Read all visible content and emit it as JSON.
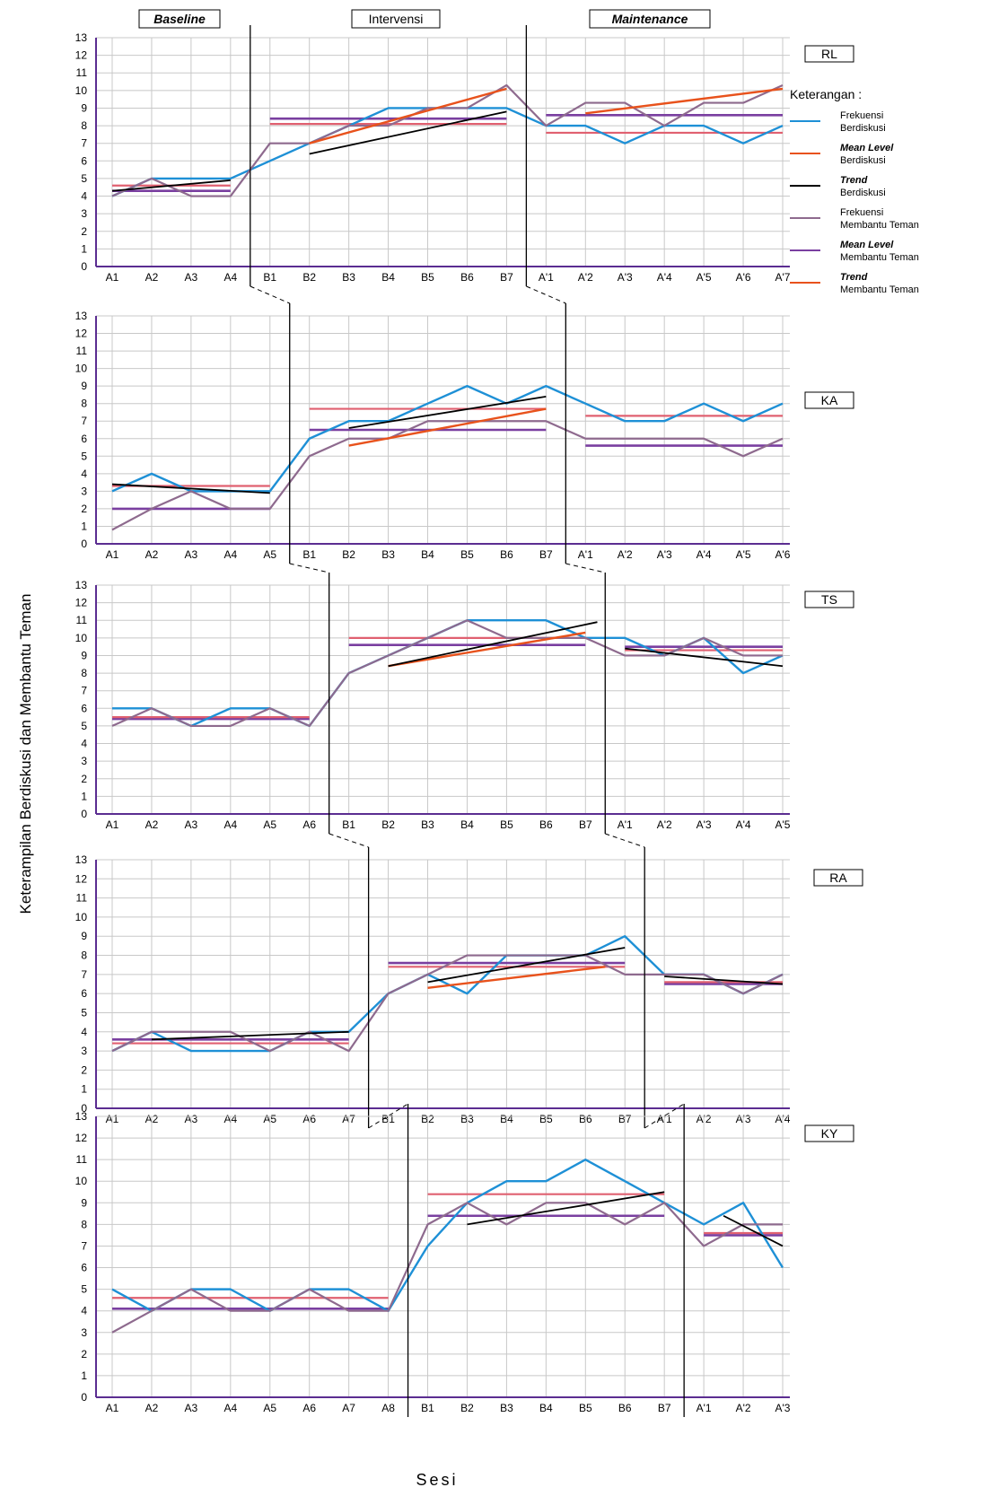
{
  "ylabel": "Keterampilan Berdiskusi dan Membantu Teman",
  "xlabel": "Sesi",
  "phases": [
    "Baseline",
    "Intervensi",
    "Maintenance"
  ],
  "legend": {
    "title": "Keterangan :",
    "items": [
      {
        "line1": "Frekuensi",
        "line2": "Berdiskusi",
        "color": "#1e90d6",
        "bold": false
      },
      {
        "line1": "Mean Level",
        "line2": "Berdiskusi",
        "color": "#e8521c",
        "bold": true
      },
      {
        "line1": "Trend",
        "line2": "Berdiskusi",
        "color": "#000000",
        "bold": true
      },
      {
        "line1": "Frekuensi",
        "line2": "Membantu Teman",
        "color": "#8e6a8e",
        "bold": false
      },
      {
        "line1": "Mean Level",
        "line2": "Membantu Teman",
        "color": "#7a3fa0",
        "bold": true
      },
      {
        "line1": "Trend",
        "line2": "Membantu Teman",
        "color": "#e8521c",
        "bold": true
      }
    ]
  },
  "colors": {
    "frekuensi_berdiskusi": "#1e90d6",
    "mean_berdiskusi": "#e06070",
    "trend_berdiskusi": "#000000",
    "frekuensi_membantu": "#8e6a8e",
    "mean_membantu": "#7a3fa0",
    "trend_membantu": "#e8521c"
  },
  "chart_data": [
    {
      "type": "line",
      "subject": "RL",
      "ylim": [
        0,
        13
      ],
      "categories": [
        "A1",
        "A2",
        "A3",
        "A4",
        "B1",
        "B2",
        "B3",
        "B4",
        "B5",
        "B6",
        "B7",
        "A'1",
        "A'2",
        "A'3",
        "A'4",
        "A'5",
        "A'6",
        "A'7"
      ],
      "phase_break_after": [
        3,
        10
      ],
      "series": [
        {
          "name": "Frekuensi Berdiskusi",
          "key": "fb",
          "values": [
            4,
            5,
            5,
            5,
            6,
            7,
            8,
            9,
            9,
            9,
            9,
            8,
            8,
            7,
            8,
            8,
            7,
            8
          ]
        },
        {
          "name": "Frekuensi Membantu Teman",
          "key": "fm",
          "values": [
            4,
            5,
            4,
            4,
            7,
            7,
            8,
            8,
            9,
            9,
            10.3,
            8,
            9.3,
            9.3,
            8,
            9.3,
            9.3,
            10.3
          ]
        }
      ],
      "mean_berdiskusi": [
        {
          "from": 0,
          "to": 3,
          "y": 4.6
        },
        {
          "from": 4,
          "to": 10,
          "y": 8.1
        },
        {
          "from": 11,
          "to": 17,
          "y": 7.6
        }
      ],
      "mean_membantu": [
        {
          "from": 0,
          "to": 3,
          "y": 4.3
        },
        {
          "from": 4,
          "to": 10,
          "y": 8.4
        },
        {
          "from": 11,
          "to": 17,
          "y": 8.6
        }
      ],
      "trend_berdiskusi": [
        {
          "x1": 0,
          "y1": 4.3,
          "x2": 3,
          "y2": 4.9
        },
        {
          "x1": 5,
          "y1": 6.4,
          "x2": 10,
          "y2": 8.8
        }
      ],
      "trend_membantu": [
        {
          "x1": 5,
          "y1": 7.0,
          "x2": 10,
          "y2": 10.1
        },
        {
          "x1": 12,
          "y1": 8.7,
          "x2": 17,
          "y2": 10.1
        }
      ]
    },
    {
      "type": "line",
      "subject": "KA",
      "ylim": [
        0,
        13
      ],
      "categories": [
        "A1",
        "A2",
        "A3",
        "A4",
        "A5",
        "B1",
        "B2",
        "B3",
        "B4",
        "B5",
        "B6",
        "B7",
        "A'1",
        "A'2",
        "A'3",
        "A'4",
        "A'5",
        "A'6"
      ],
      "phase_break_after": [
        4,
        11
      ],
      "series": [
        {
          "name": "Frekuensi Berdiskusi",
          "key": "fb",
          "values": [
            3,
            4,
            3,
            3,
            3,
            6,
            7,
            7,
            8,
            9,
            8,
            9,
            8,
            7,
            7,
            8,
            7,
            8
          ]
        },
        {
          "name": "Frekuensi Membantu Teman",
          "key": "fm",
          "values": [
            0.8,
            2,
            3,
            2,
            2,
            5,
            6,
            6,
            7,
            7,
            7,
            7,
            6,
            6,
            6,
            6,
            5,
            6
          ]
        }
      ],
      "mean_berdiskusi": [
        {
          "from": 0,
          "to": 4,
          "y": 3.3
        },
        {
          "from": 5,
          "to": 11,
          "y": 7.7
        },
        {
          "from": 12,
          "to": 17,
          "y": 7.3
        }
      ],
      "mean_membantu": [
        {
          "from": 0,
          "to": 4,
          "y": 2.0
        },
        {
          "from": 5,
          "to": 11,
          "y": 6.5
        },
        {
          "from": 12,
          "to": 17,
          "y": 5.6
        }
      ],
      "trend_berdiskusi": [
        {
          "x1": 0,
          "y1": 3.4,
          "x2": 4,
          "y2": 2.9
        },
        {
          "x1": 6,
          "y1": 6.6,
          "x2": 11,
          "y2": 8.4
        }
      ],
      "trend_membantu": [
        {
          "x1": 6,
          "y1": 5.6,
          "x2": 11,
          "y2": 7.7
        }
      ]
    },
    {
      "type": "line",
      "subject": "TS",
      "ylim": [
        0,
        13
      ],
      "categories": [
        "A1",
        "A2",
        "A3",
        "A4",
        "A5",
        "A6",
        "B1",
        "B2",
        "B3",
        "B4",
        "B5",
        "B6",
        "B7",
        "A'1",
        "A'2",
        "A'3",
        "A'4",
        "A'5"
      ],
      "phase_break_after": [
        5,
        12
      ],
      "series": [
        {
          "name": "Frekuensi Berdiskusi",
          "key": "fb",
          "values": [
            6,
            6,
            5,
            6,
            6,
            5,
            8,
            9,
            10,
            11,
            11,
            11,
            10,
            10,
            9,
            10,
            8,
            9
          ]
        },
        {
          "name": "Frekuensi Membantu Teman",
          "key": "fm",
          "values": [
            5,
            6,
            5,
            5,
            6,
            5,
            8,
            9,
            10,
            11,
            10,
            10,
            10,
            9,
            9,
            10,
            9,
            9
          ]
        }
      ],
      "mean_berdiskusi": [
        {
          "from": 0,
          "to": 5,
          "y": 5.5
        },
        {
          "from": 6,
          "to": 12,
          "y": 10.0
        },
        {
          "from": 13,
          "to": 17,
          "y": 9.3
        }
      ],
      "mean_membantu": [
        {
          "from": 0,
          "to": 5,
          "y": 5.4
        },
        {
          "from": 6,
          "to": 12,
          "y": 9.6
        },
        {
          "from": 13,
          "to": 17,
          "y": 9.5
        }
      ],
      "trend_berdiskusi": [
        {
          "x1": 7,
          "y1": 8.4,
          "x2": 12.3,
          "y2": 10.9
        },
        {
          "x1": 13,
          "y1": 9.4,
          "x2": 17,
          "y2": 8.4
        }
      ],
      "trend_membantu": [
        {
          "x1": 7,
          "y1": 8.4,
          "x2": 12,
          "y2": 10.3
        }
      ]
    },
    {
      "type": "line",
      "subject": "RA",
      "ylim": [
        0,
        13
      ],
      "categories": [
        "A1",
        "A2",
        "A3",
        "A4",
        "A5",
        "A6",
        "A7",
        "B1",
        "B2",
        "B3",
        "B4",
        "B5",
        "B6",
        "B7",
        "A'1",
        "A'2",
        "A'3",
        "A'4"
      ],
      "phase_break_after": [
        6,
        13
      ],
      "series": [
        {
          "name": "Frekuensi Berdiskusi",
          "key": "fb",
          "values": [
            3,
            4,
            3,
            3,
            3,
            4,
            4,
            6,
            7,
            6,
            8,
            8,
            8,
            9,
            7,
            7,
            6,
            7
          ]
        },
        {
          "name": "Frekuensi Membantu Teman",
          "key": "fm",
          "values": [
            3,
            4,
            4,
            4,
            3,
            4,
            3,
            6,
            7,
            8,
            8,
            8,
            8,
            7,
            7,
            7,
            6,
            7
          ]
        }
      ],
      "mean_berdiskusi": [
        {
          "from": 0,
          "to": 6,
          "y": 3.4
        },
        {
          "from": 7,
          "to": 13,
          "y": 7.4
        },
        {
          "from": 14,
          "to": 17,
          "y": 6.6
        }
      ],
      "mean_membantu": [
        {
          "from": 0,
          "to": 6,
          "y": 3.6
        },
        {
          "from": 7,
          "to": 13,
          "y": 7.6
        },
        {
          "from": 14,
          "to": 17,
          "y": 6.5
        }
      ],
      "trend_berdiskusi": [
        {
          "x1": 1,
          "y1": 3.6,
          "x2": 6,
          "y2": 4.0
        },
        {
          "x1": 8,
          "y1": 6.6,
          "x2": 13,
          "y2": 8.4
        },
        {
          "x1": 14,
          "y1": 6.9,
          "x2": 17,
          "y2": 6.5
        }
      ],
      "trend_membantu": [
        {
          "x1": 8,
          "y1": 6.3,
          "x2": 12.5,
          "y2": 7.4
        }
      ]
    },
    {
      "type": "line",
      "subject": "KY",
      "ylim": [
        0,
        13
      ],
      "categories": [
        "A1",
        "A2",
        "A3",
        "A4",
        "A5",
        "A6",
        "A7",
        "A8",
        "B1",
        "B2",
        "B3",
        "B4",
        "B5",
        "B6",
        "B7",
        "A'1",
        "A'2",
        "A'3"
      ],
      "phase_break_after": [
        7,
        14
      ],
      "series": [
        {
          "name": "Frekuensi Berdiskusi",
          "key": "fb",
          "values": [
            5,
            4,
            5,
            5,
            4,
            5,
            5,
            4,
            7,
            9,
            10,
            10,
            11,
            10,
            9,
            8,
            9,
            6
          ]
        },
        {
          "name": "Frekuensi Membantu Teman",
          "key": "fm",
          "values": [
            3,
            4,
            5,
            4,
            4,
            5,
            4,
            4,
            8,
            9,
            8,
            9,
            9,
            8,
            9,
            7,
            8,
            8
          ]
        }
      ],
      "mean_berdiskusi": [
        {
          "from": 0,
          "to": 7,
          "y": 4.6
        },
        {
          "from": 8,
          "to": 14,
          "y": 9.4
        },
        {
          "from": 15,
          "to": 17,
          "y": 7.6
        }
      ],
      "mean_membantu": [
        {
          "from": 0,
          "to": 7,
          "y": 4.1
        },
        {
          "from": 8,
          "to": 14,
          "y": 8.4
        },
        {
          "from": 15,
          "to": 17,
          "y": 7.5
        }
      ],
      "trend_berdiskusi": [
        {
          "x1": 9,
          "y1": 8.0,
          "x2": 14,
          "y2": 9.5
        },
        {
          "x1": 15.5,
          "y1": 8.4,
          "x2": 17,
          "y2": 7.0
        }
      ],
      "trend_membantu": []
    }
  ]
}
